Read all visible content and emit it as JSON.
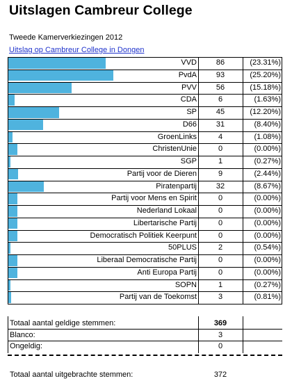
{
  "title": "Uitslagen Cambreur College",
  "subtitle": "Tweede Kamerverkiezingen 2012",
  "link": "Uitslag op Cambreur College in Dongen",
  "colors": {
    "bar": "#4fb3de",
    "link": "#1f33cc"
  },
  "parties": [
    {
      "name": "VVD",
      "seats": "86",
      "pct": "(23.31%)",
      "share": 23.31
    },
    {
      "name": "PvdA",
      "seats": "93",
      "pct": "(25.20%)",
      "share": 25.2
    },
    {
      "name": "PVV",
      "seats": "56",
      "pct": "(15.18%)",
      "share": 15.18
    },
    {
      "name": "CDA",
      "seats": "6",
      "pct": "(1.63%)",
      "share": 1.63
    },
    {
      "name": "SP",
      "seats": "45",
      "pct": "(12.20%)",
      "share": 12.2
    },
    {
      "name": "D66",
      "seats": "31",
      "pct": "(8.40%)",
      "share": 8.4
    },
    {
      "name": "GroenLinks",
      "seats": "4",
      "pct": "(1.08%)",
      "share": 1.08
    },
    {
      "name": "ChristenUnie",
      "seats": "0",
      "pct": "(0.00%)",
      "share": 0
    },
    {
      "name": "SGP",
      "seats": "1",
      "pct": "(0.27%)",
      "share": 0.27
    },
    {
      "name": "Partij voor de Dieren",
      "seats": "9",
      "pct": "(2.44%)",
      "share": 2.44
    },
    {
      "name": "Piratenpartij",
      "seats": "32",
      "pct": "(8.67%)",
      "share": 8.67
    },
    {
      "name": "Partij voor Mens en Spirit",
      "seats": "0",
      "pct": "(0.00%)",
      "share": 0
    },
    {
      "name": "Nederland Lokaal",
      "seats": "0",
      "pct": "(0.00%)",
      "share": 0
    },
    {
      "name": "Libertarische Partij",
      "seats": "0",
      "pct": "(0.00%)",
      "share": 0
    },
    {
      "name": "Democratisch Politiek Keerpunt",
      "seats": "0",
      "pct": "(0.00%)",
      "share": 0
    },
    {
      "name": "50PLUS",
      "seats": "2",
      "pct": "(0.54%)",
      "share": 0.54
    },
    {
      "name": "Liberaal Democratische Partij",
      "seats": "0",
      "pct": "(0.00%)",
      "share": 0
    },
    {
      "name": "Anti Europa Partij",
      "seats": "0",
      "pct": "(0.00%)",
      "share": 0
    },
    {
      "name": "SOPN",
      "seats": "1",
      "pct": "(0.27%)",
      "share": 0.27
    },
    {
      "name": "Partij van de Toekomst",
      "seats": "3",
      "pct": "(0.81%)",
      "share": 0.81
    }
  ],
  "summary": {
    "valid_label": "Totaal aantal geldige stemmen:",
    "valid_value": "369",
    "blank_label": "Blanco:",
    "blank_value": "3",
    "invalid_label": "Ongeldig:",
    "invalid_value": "0",
    "cast_label": "Totaal aantal uitgebrachte stemmen:",
    "cast_value": "372"
  }
}
